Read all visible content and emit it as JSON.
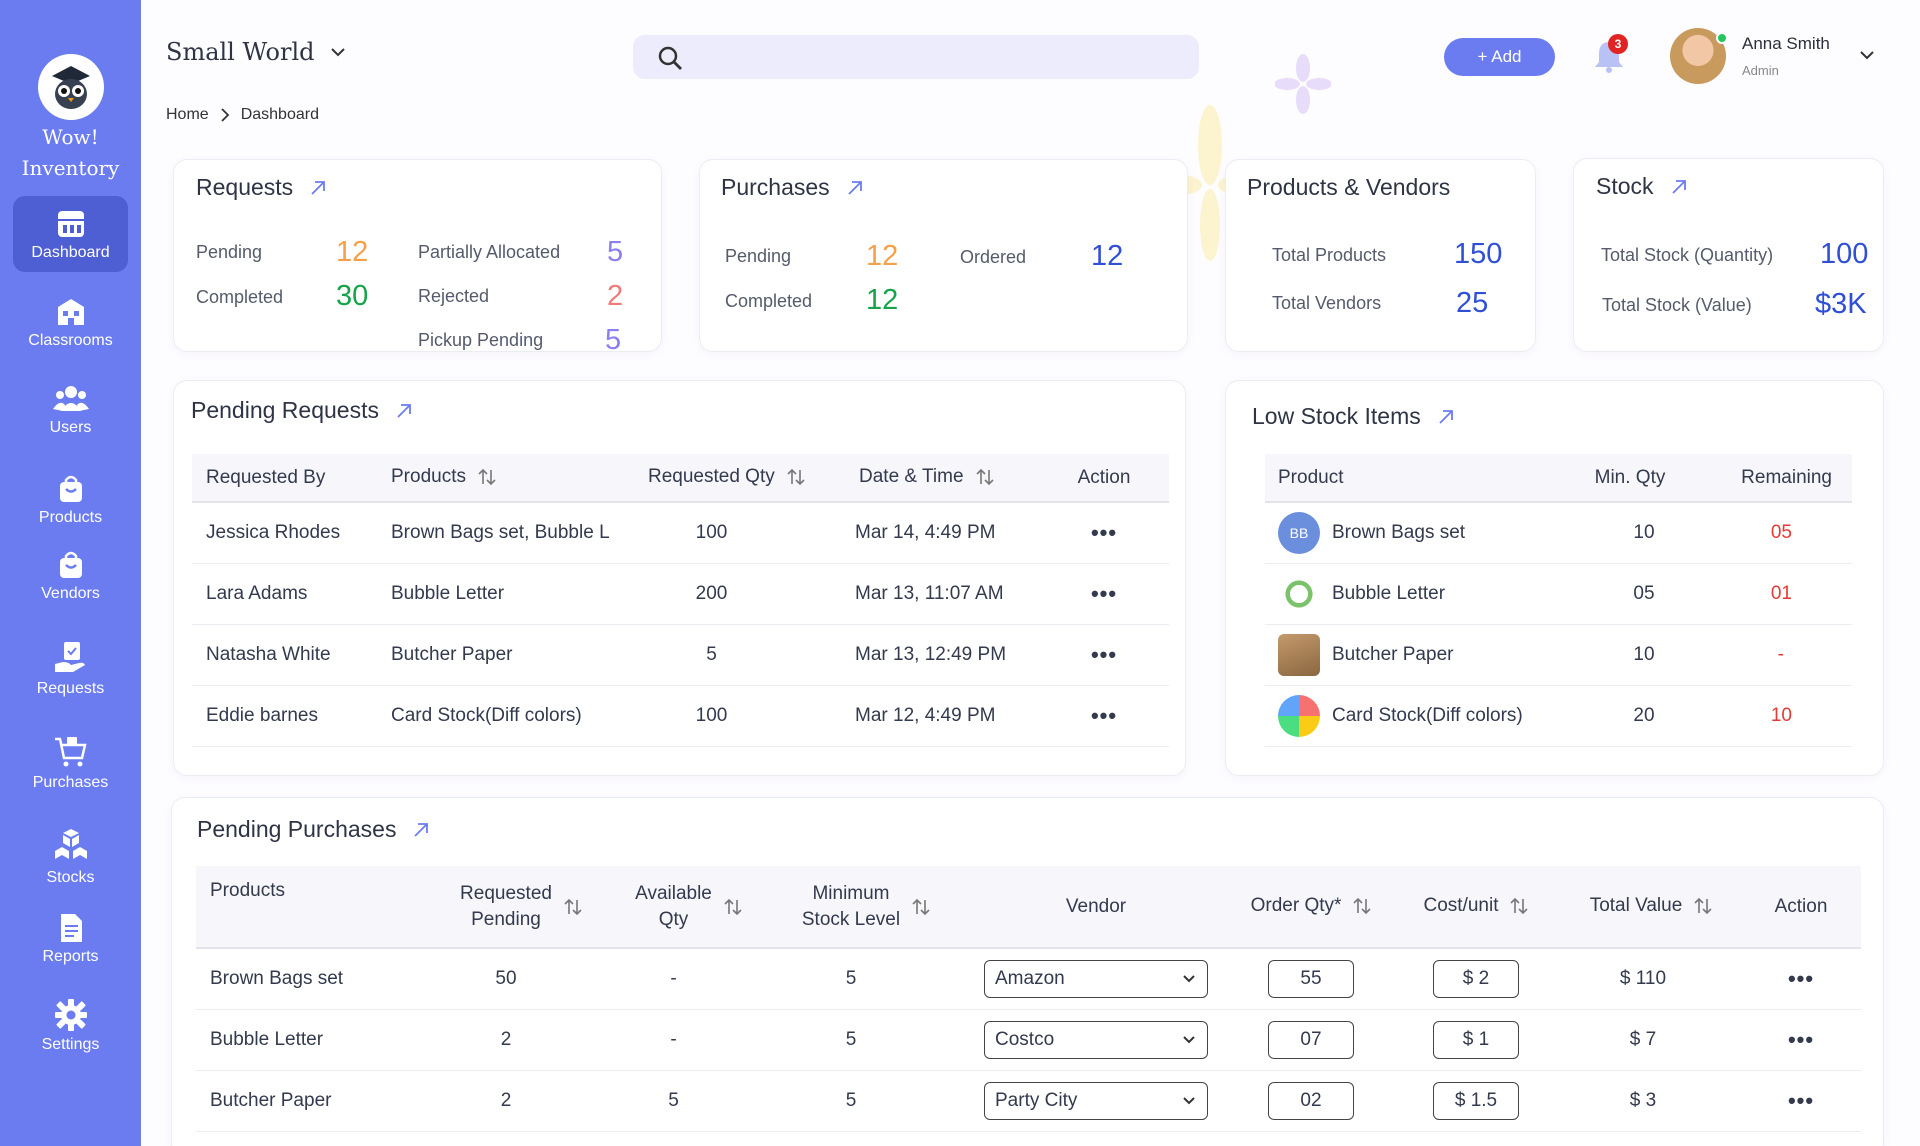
{
  "app": {
    "logo_line1": "Wow!",
    "logo_line2": "Inventory"
  },
  "sidebar": {
    "items": [
      {
        "label": "Dashboard",
        "icon": "dashboard-icon",
        "active": true
      },
      {
        "label": "Classrooms",
        "icon": "classroom-icon"
      },
      {
        "label": "Users",
        "icon": "users-icon"
      },
      {
        "label": "Products",
        "icon": "bag-icon"
      },
      {
        "label": "Vendors",
        "icon": "bag-icon"
      },
      {
        "label": "Requests",
        "icon": "requests-icon"
      },
      {
        "label": "Purchases",
        "icon": "cart-icon"
      },
      {
        "label": "Stocks",
        "icon": "boxes-icon"
      },
      {
        "label": "Reports",
        "icon": "document-icon"
      },
      {
        "label": "Settings",
        "icon": "gear-icon"
      }
    ]
  },
  "header": {
    "org_name": "Small World",
    "breadcrumb": [
      "Home",
      "Dashboard"
    ],
    "add_label": "+ Add",
    "notification_count": "3",
    "user_name": "Anna Smith",
    "user_role": "Admin"
  },
  "colors": {
    "accent": "#6b7cf0",
    "sidebar_active": "#4e5fd4",
    "orange": "#f5a14a",
    "green": "#16a34a",
    "purple": "#8b7ff0",
    "red": "#ef7b7b",
    "blue": "#2f4fd6"
  },
  "requests_card": {
    "title": "Requests",
    "pending_label": "Pending",
    "pending_value": "12",
    "completed_label": "Completed",
    "completed_value": "30",
    "partially_label": "Partially Allocated",
    "partially_value": "5",
    "rejected_label": "Rejected",
    "rejected_value": "2",
    "pickup_label": "Pickup Pending",
    "pickup_value": "5"
  },
  "purchases_card": {
    "title": "Purchases",
    "pending_label": "Pending",
    "pending_value": "12",
    "completed_label": "Completed",
    "completed_value": "12",
    "ordered_label": "Ordered",
    "ordered_value": "12"
  },
  "products_vendors_card": {
    "title": "Products & Vendors",
    "products_label": "Total Products",
    "products_value": "150",
    "vendors_label": "Total Vendors",
    "vendors_value": "25"
  },
  "stock_card": {
    "title": "Stock",
    "qty_label": "Total Stock (Quantity)",
    "qty_value": "100",
    "value_label": "Total Stock (Value)",
    "value_value": "$3K"
  },
  "pending_requests": {
    "title": "Pending Requests",
    "columns": [
      "Requested By",
      "Products",
      "Requested Qty",
      "Date & Time",
      "Action"
    ],
    "rows": [
      {
        "by": "Jessica Rhodes",
        "products": "Brown Bags set, Bubble L",
        "qty": "100",
        "date": "Mar 14,  4:49 PM"
      },
      {
        "by": "Lara Adams",
        "products": "Bubble Letter",
        "qty": "200",
        "date": "Mar 13,  11:07 AM"
      },
      {
        "by": "Natasha White",
        "products": "Butcher Paper",
        "qty": "5",
        "date": "Mar 13,  12:49 PM"
      },
      {
        "by": "Eddie barnes",
        "products": "Card Stock(Diff colors)",
        "qty": "100",
        "date": "Mar 12,  4:49 PM"
      }
    ]
  },
  "low_stock": {
    "title": "Low Stock Items",
    "columns": [
      "Product",
      "Min. Qty",
      "Remaining"
    ],
    "rows": [
      {
        "product": "Brown Bags set",
        "icon_text": "BB",
        "min": "10",
        "remaining": "05"
      },
      {
        "product": "Bubble Letter",
        "icon_text": "",
        "min": "05",
        "remaining": "01"
      },
      {
        "product": "Butcher Paper",
        "icon_text": "",
        "min": "10",
        "remaining": "-"
      },
      {
        "product": "Card Stock(Diff colors)",
        "icon_text": "",
        "min": "20",
        "remaining": "10"
      }
    ]
  },
  "pending_purchases": {
    "title": "Pending Purchases",
    "columns": {
      "products": "Products",
      "req1": "Requested",
      "req2": "Pending",
      "avail1": "Available",
      "avail2": "Qty",
      "min1": "Minimum",
      "min2": "Stock Level",
      "vendor": "Vendor",
      "order": "Order Qty*",
      "cost": "Cost/unit",
      "total": "Total Value",
      "action": "Action"
    },
    "rows": [
      {
        "product": "Brown Bags set",
        "requested": "50",
        "available": "-",
        "minimum": "5",
        "vendor": "Amazon",
        "order_qty": "55",
        "cost": "$ 2",
        "total": "$ 110"
      },
      {
        "product": "Bubble Letter",
        "requested": "2",
        "available": "-",
        "minimum": "5",
        "vendor": "Costco",
        "order_qty": "07",
        "cost": "$ 1",
        "total": "$ 7"
      },
      {
        "product": "Butcher Paper",
        "requested": "2",
        "available": "5",
        "minimum": "5",
        "vendor": "Party City",
        "order_qty": "02",
        "cost": "$ 1.5",
        "total": "$ 3"
      }
    ]
  }
}
